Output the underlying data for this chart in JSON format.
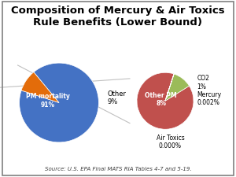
{
  "title": "Composition of Mercury & Air Toxics\nRule Benefits (Lower Bound)",
  "title_fontsize": 9.5,
  "source_text": "Source: U.S. EPA Final MATS RIA Tables 4-7 and 5-19.",
  "source_fontsize": 5,
  "pie1": {
    "values": [
      91,
      9
    ],
    "colors": [
      "#4472C4",
      "#E36C0A"
    ],
    "startangle": 162,
    "label_pm": "PM mortality\n91%",
    "label_other": "Other\n9%"
  },
  "pie2": {
    "values": [
      88.9,
      11.1,
      0.02,
      0.001
    ],
    "colors": [
      "#C0504D",
      "#9BBB59",
      "#7F7F7F",
      "#7F7F7F"
    ],
    "startangle": 72,
    "labels": [
      "Other PM\n8%",
      "CO2\n1%",
      "Mercury\n0.002%",
      "Air Toxics\n0.000%"
    ]
  },
  "connection_color": "#C0C0C0",
  "background_color": "#FFFFFF",
  "border_color": "#808080"
}
